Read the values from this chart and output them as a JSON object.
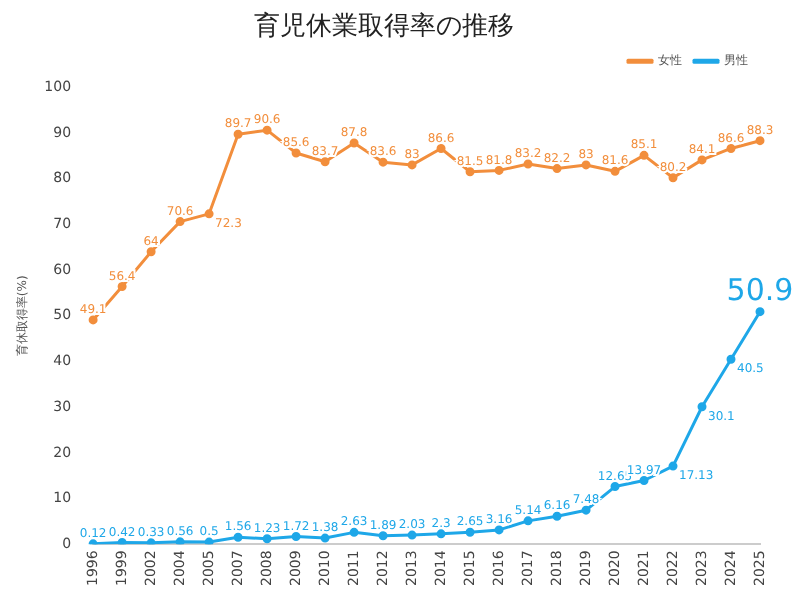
{
  "chart_data": {
    "type": "line",
    "title": "育児休業取得率の推移",
    "ylabel": "育休取得率(%)",
    "categories": [
      "1996",
      "1999",
      "2002",
      "2004",
      "2005",
      "2007",
      "2008",
      "2009",
      "2010",
      "2011",
      "2012",
      "2013",
      "2014",
      "2015",
      "2016",
      "2017",
      "2018",
      "2019",
      "2020",
      "2021",
      "2022",
      "2023",
      "2024",
      "2025"
    ],
    "series": [
      {
        "name": "女性",
        "color": "#f28e3c",
        "values": [
          49.1,
          56.4,
          64,
          70.6,
          72.3,
          89.7,
          90.6,
          85.6,
          83.7,
          87.8,
          83.6,
          83,
          86.6,
          81.5,
          81.8,
          83.2,
          82.2,
          83,
          81.6,
          85.1,
          80.2,
          84.1,
          86.6,
          88.3
        ]
      },
      {
        "name": "男性",
        "color": "#1ea7e8",
        "values": [
          0.12,
          0.42,
          0.33,
          0.56,
          0.5,
          1.56,
          1.23,
          1.72,
          1.38,
          2.63,
          1.89,
          2.03,
          2.3,
          2.65,
          3.16,
          5.14,
          6.16,
          7.48,
          12.65,
          13.97,
          17.13,
          30.1,
          40.5,
          50.9
        ]
      }
    ],
    "ylim": [
      0,
      100
    ],
    "yticks": [
      0,
      10,
      20,
      30,
      40,
      50,
      60,
      70,
      80,
      90,
      100
    ],
    "grid": false,
    "legend": "top",
    "marker": "circle",
    "data_labels": true
  }
}
